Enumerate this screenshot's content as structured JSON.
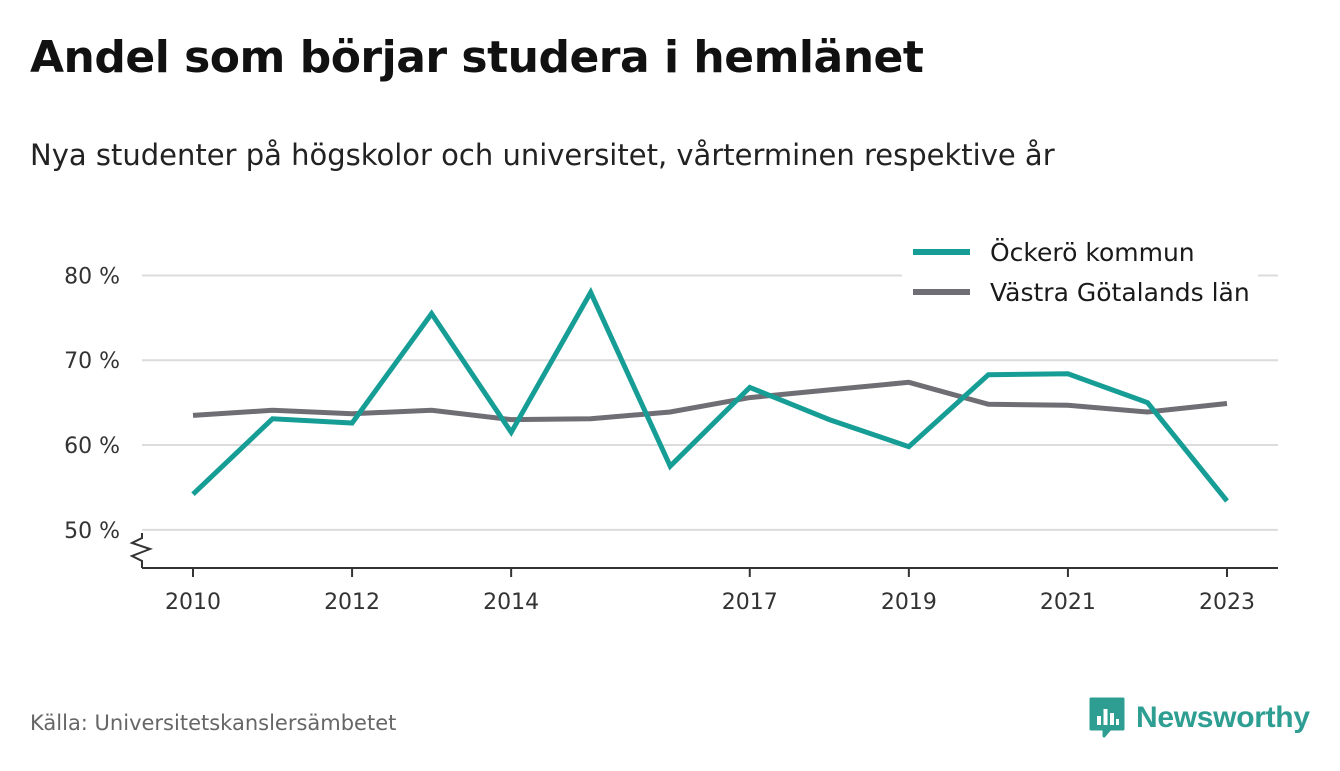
{
  "header": {
    "title": "Andel som börjar studera i hemlänet",
    "subtitle": "Nya studenter på högskolor och universitet, vårterminen respektive år"
  },
  "footer": {
    "source": "Källa: Universitetskanslersämbetet",
    "brand": "Newsworthy",
    "brand_icon": "bar-chart-speech-bubble-icon"
  },
  "colors": {
    "series_1": "#169e96",
    "series_2": "#6f6e74",
    "grid": "#dcdcdc",
    "axis": "#333333",
    "brand": "#2e9e92"
  },
  "chart_data": {
    "type": "line",
    "x": [
      2010,
      2011,
      2012,
      2013,
      2014,
      2015,
      2016,
      2017,
      2018,
      2019,
      2020,
      2021,
      2022,
      2023
    ],
    "x_tick_labels": [
      "2010",
      "2012",
      "2014",
      "2017",
      "2019",
      "2021",
      "2023"
    ],
    "x_ticks": [
      2010,
      2012,
      2014,
      2017,
      2019,
      2021,
      2023
    ],
    "y_ticks": [
      50,
      60,
      70,
      80
    ],
    "y_tick_labels": [
      "50 %",
      "60 %",
      "70 %",
      "80 %"
    ],
    "ylim": [
      45.5,
      83
    ],
    "y_axis_break": true,
    "grid": true,
    "legend_position": "top-right",
    "series": [
      {
        "name": "Öckerö kommun",
        "values": [
          54.2,
          63.1,
          62.6,
          75.5,
          61.5,
          78.0,
          57.5,
          66.8,
          63.0,
          59.8,
          68.3,
          68.4,
          65.0,
          53.4
        ]
      },
      {
        "name": "Västra Götalands län",
        "values": [
          63.5,
          64.1,
          63.7,
          64.1,
          63.0,
          63.1,
          63.9,
          65.6,
          66.5,
          67.4,
          64.8,
          64.7,
          63.9,
          64.9
        ]
      }
    ]
  }
}
